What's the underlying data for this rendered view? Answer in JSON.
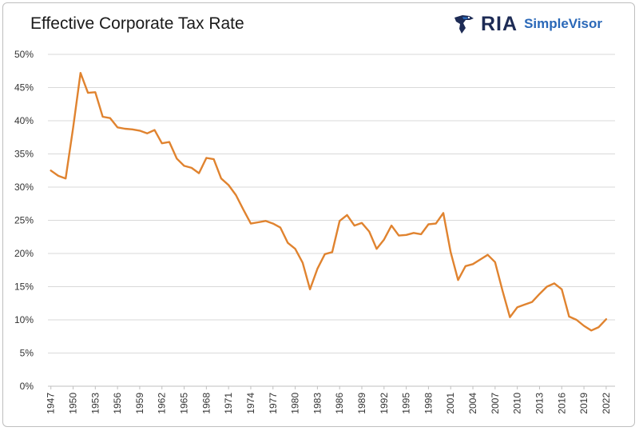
{
  "title": "Effective Corporate Tax Rate",
  "brand": {
    "name": "RIA",
    "product": "SimpleVisor",
    "icon": "eagle-logo-icon",
    "colors": {
      "name": "#1d2b55",
      "product": "#2a68b8"
    }
  },
  "chart_data": {
    "type": "line",
    "title": "Effective Corporate Tax Rate",
    "xlabel": "",
    "ylabel": "",
    "ylim": [
      0,
      50
    ],
    "y_ticks": [
      "0%",
      "5%",
      "10%",
      "15%",
      "20%",
      "25%",
      "30%",
      "35%",
      "40%",
      "45%",
      "50%"
    ],
    "x_ticks": [
      "1947",
      "1950",
      "1953",
      "1956",
      "1959",
      "1962",
      "1965",
      "1968",
      "1971",
      "1974",
      "1977",
      "1980",
      "1983",
      "1986",
      "1989",
      "1992",
      "1995",
      "1998",
      "2001",
      "2004",
      "2007",
      "2010",
      "2013",
      "2016",
      "2019",
      "2022"
    ],
    "grid": true,
    "legend": "none",
    "line_color": "#e0832f",
    "series": [
      {
        "x": [
          1947,
          1948,
          1949,
          1950,
          1951,
          1952,
          1953,
          1954,
          1955,
          1956,
          1957,
          1958,
          1959,
          1960,
          1961,
          1962,
          1963,
          1964,
          1965,
          1966,
          1967,
          1968,
          1969,
          1970,
          1971,
          1972,
          1973,
          1974,
          1975,
          1976,
          1977,
          1978,
          1979,
          1980,
          1981,
          1982,
          1983,
          1984,
          1985,
          1986,
          1987,
          1988,
          1989,
          1990,
          1991,
          1992,
          1993,
          1994,
          1995,
          1996,
          1997,
          1998,
          1999,
          2000,
          2001,
          2002,
          2003,
          2004,
          2005,
          2006,
          2007,
          2008,
          2009,
          2010,
          2011,
          2012,
          2013,
          2014,
          2015,
          2016,
          2017,
          2018,
          2019,
          2020,
          2021,
          2022
        ],
        "values": [
          32.5,
          31.7,
          31.3,
          38.9,
          47.2,
          44.2,
          44.3,
          40.6,
          40.4,
          39.0,
          38.8,
          38.7,
          38.5,
          38.1,
          38.6,
          36.6,
          36.8,
          34.3,
          33.2,
          32.9,
          32.1,
          34.4,
          34.2,
          31.3,
          30.3,
          28.8,
          26.6,
          24.5,
          24.7,
          24.9,
          24.5,
          23.9,
          21.6,
          20.7,
          18.6,
          14.6,
          17.7,
          19.9,
          20.2,
          24.9,
          25.8,
          24.2,
          24.6,
          23.3,
          20.7,
          22.1,
          24.2,
          22.7,
          22.8,
          23.1,
          22.9,
          24.4,
          24.5,
          26.1,
          20.2,
          16.0,
          18.1,
          18.4,
          19.1,
          19.8,
          18.7,
          14.4,
          10.4,
          11.9,
          12.3,
          12.7,
          13.9,
          15.0,
          15.5,
          14.6,
          10.5,
          10.0,
          9.1,
          8.4,
          8.9,
          10.1
        ]
      }
    ]
  }
}
